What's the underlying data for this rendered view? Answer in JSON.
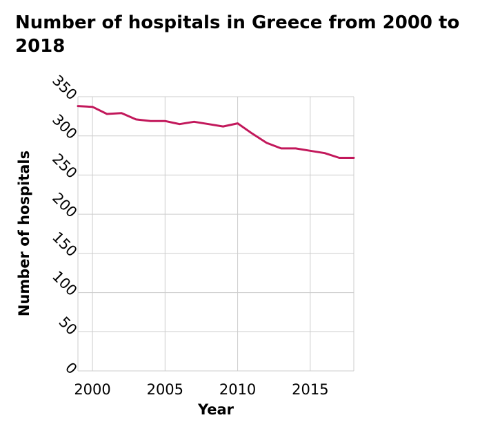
{
  "chart_data": {
    "type": "line",
    "title": "Number of hospitals in Greece from 2000 to 2018",
    "xlabel": "Year",
    "ylabel": "Number of hospitals",
    "xlim": [
      1999,
      2018
    ],
    "ylim": [
      0,
      350
    ],
    "xticks": [
      2000,
      2005,
      2010,
      2015
    ],
    "yticks": [
      0,
      50,
      100,
      150,
      200,
      250,
      300,
      350
    ],
    "grid": true,
    "series": [
      {
        "color": "#c2185b",
        "x": [
          1999,
          2000,
          2001,
          2002,
          2003,
          2004,
          2005,
          2006,
          2007,
          2008,
          2009,
          2010,
          2011,
          2012,
          2013,
          2014,
          2015,
          2016,
          2017,
          2018
        ],
        "y": [
          338,
          337,
          328,
          329,
          321,
          319,
          319,
          315,
          318,
          315,
          312,
          316,
          303,
          291,
          284,
          284,
          281,
          278,
          272,
          272
        ]
      }
    ]
  }
}
